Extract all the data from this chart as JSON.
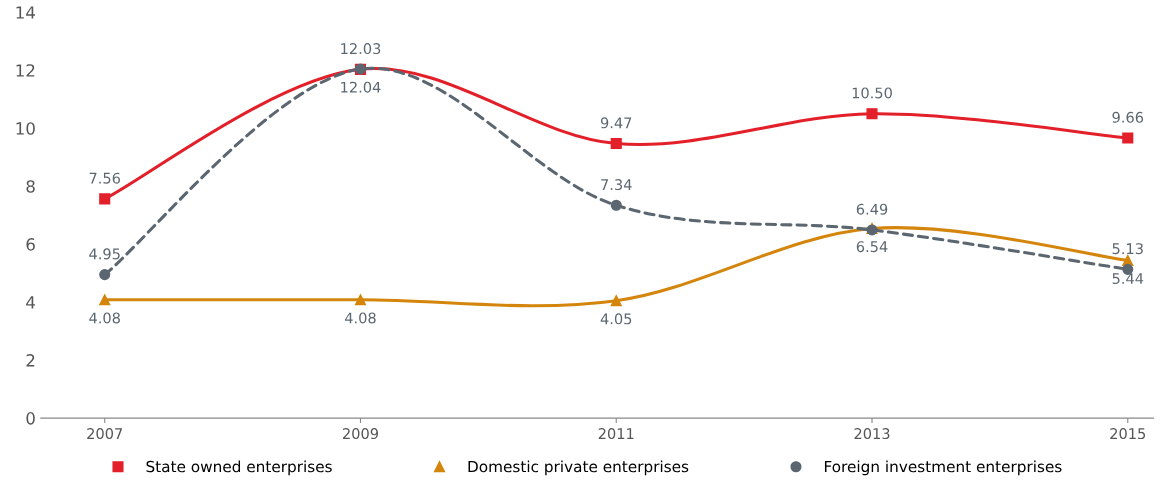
{
  "chart_data": {
    "type": "line",
    "categories": [
      "2007",
      "2009",
      "2011",
      "2013",
      "2015"
    ],
    "series": [
      {
        "name": "State owned enterprises",
        "color": "#e3202a",
        "values": [
          7.56,
          12.03,
          9.47,
          10.5,
          9.66
        ],
        "value_labels": [
          "7.56",
          "12.03",
          "9.47",
          "10.50",
          "9.66"
        ],
        "marker": "square",
        "line_style": "solid"
      },
      {
        "name": "Domestic private enterprises",
        "color": "#d4850c",
        "values": [
          4.08,
          4.08,
          4.05,
          6.54,
          5.44
        ],
        "value_labels": [
          "4.08",
          "4.08",
          "4.05",
          "6.54",
          "5.44"
        ],
        "marker": "triangle",
        "line_style": "solid"
      },
      {
        "name": "Foreign investment enterprises",
        "color": "#5b6670",
        "values": [
          4.95,
          12.04,
          7.34,
          6.49,
          5.13
        ],
        "value_labels": [
          "4.95",
          "12.04",
          "7.34",
          "6.49",
          "5.13"
        ],
        "marker": "circle",
        "line_style": "dashed"
      }
    ],
    "ylim": [
      0,
      14
    ],
    "yticks": [
      0,
      2,
      4,
      6,
      8,
      10,
      12,
      14
    ],
    "grid": false,
    "legend": "bottom"
  }
}
